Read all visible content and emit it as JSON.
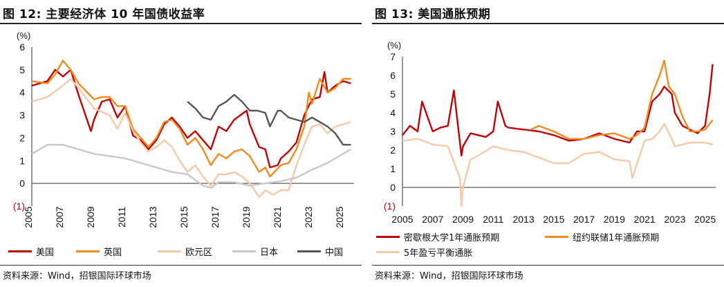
{
  "left": {
    "title": "图 12: 主要经济体 10 年国债收益率",
    "source": "资料来源：Wind，招银国际环球市场",
    "legend": [
      {
        "name": "美国",
        "color": "#c00000"
      },
      {
        "name": "英国",
        "color": "#f28a1e"
      },
      {
        "name": "欧元区",
        "color": "#f7c9a8"
      },
      {
        "name": "日本",
        "color": "#c8c8c8"
      },
      {
        "name": "中国",
        "color": "#555555"
      }
    ]
  },
  "right": {
    "title": "图 13: 美国通胀预期",
    "source": "资料来源：Wind，招银国际环球市场",
    "legend": [
      {
        "name": "密歇根大学1年通胀预期",
        "color": "#c00000"
      },
      {
        "name": "纽约联储1年通胀预期",
        "color": "#f28a1e"
      },
      {
        "name": "5年盈亏平衡通胀",
        "color": "#f7c9a8"
      }
    ]
  },
  "chart_data": [
    {
      "type": "line",
      "title": "图 12: 主要经济体 10 年国债收益率",
      "ylabel": "(%)",
      "ylim": [
        -1,
        6
      ],
      "yticks": [
        "6",
        "5",
        "4",
        "3",
        "2",
        "1",
        "0",
        "(1)"
      ],
      "xlim": [
        2005,
        2025.7
      ],
      "xticks": [
        "2005",
        "2007",
        "2009",
        "2011",
        "2013",
        "2015",
        "2017",
        "2019",
        "2021",
        "2023",
        "2025"
      ],
      "series": [
        {
          "name": "美国",
          "color": "#c00000",
          "x": [
            2005,
            2006,
            2006.5,
            2007,
            2007.5,
            2008,
            2008.8,
            2009,
            2009.5,
            2010,
            2010.5,
            2011,
            2011.5,
            2012,
            2012.5,
            2013,
            2013.5,
            2014,
            2014.5,
            2015,
            2015.5,
            2016,
            2016.5,
            2017,
            2017.5,
            2018,
            2018.8,
            2019,
            2019.6,
            2020,
            2020.3,
            2020.8,
            2021,
            2021.5,
            2022,
            2022.5,
            2023,
            2023.5,
            2023.8,
            2024,
            2024.5,
            2025,
            2025.5
          ],
          "y": [
            4.3,
            4.5,
            5.0,
            4.7,
            5.0,
            3.9,
            2.3,
            2.8,
            3.6,
            3.7,
            2.9,
            3.4,
            2.1,
            1.9,
            1.5,
            1.9,
            2.6,
            2.9,
            2.5,
            2.0,
            2.3,
            1.9,
            1.5,
            2.5,
            2.3,
            2.8,
            3.2,
            2.6,
            1.6,
            1.5,
            0.7,
            0.8,
            1.1,
            1.4,
            1.8,
            3.0,
            3.7,
            3.8,
            4.9,
            4.0,
            4.3,
            4.5,
            4.4
          ]
        },
        {
          "name": "英国",
          "color": "#f28a1e",
          "x": [
            2005,
            2006,
            2006.5,
            2007,
            2007.5,
            2008,
            2009,
            2009.5,
            2010,
            2010.5,
            2011,
            2011.5,
            2012,
            2012.5,
            2013,
            2013.5,
            2014,
            2014.5,
            2015,
            2015.5,
            2016,
            2016.5,
            2017,
            2017.5,
            2018,
            2018.5,
            2019,
            2019.6,
            2020,
            2020.3,
            2021,
            2021.5,
            2022,
            2022.5,
            2022.8,
            2023,
            2023.5,
            2024,
            2024.5,
            2025,
            2025.5
          ],
          "y": [
            4.5,
            4.4,
            4.8,
            5.4,
            5.0,
            4.4,
            3.7,
            3.8,
            3.8,
            3.4,
            3.4,
            2.4,
            2.0,
            1.6,
            2.0,
            2.7,
            2.8,
            2.4,
            1.7,
            2.0,
            1.5,
            0.8,
            1.3,
            1.1,
            1.4,
            1.5,
            1.2,
            0.5,
            0.7,
            0.3,
            0.8,
            0.9,
            1.5,
            2.5,
            4.0,
            3.5,
            4.6,
            4.0,
            4.2,
            4.6,
            4.6
          ]
        },
        {
          "name": "欧元区",
          "color": "#f7c9a8",
          "x": [
            2005,
            2006,
            2007,
            2007.5,
            2008,
            2009,
            2010,
            2010.5,
            2011,
            2011.5,
            2012,
            2012.5,
            2013,
            2013.5,
            2014,
            2014.5,
            2015,
            2015.5,
            2016,
            2016.5,
            2017,
            2017.5,
            2018,
            2018.5,
            2019,
            2019.6,
            2020,
            2020.5,
            2021,
            2021.5,
            2022,
            2022.5,
            2023,
            2023.5,
            2024,
            2024.5,
            2025,
            2025.5
          ],
          "y": [
            3.6,
            3.8,
            4.3,
            4.6,
            4.2,
            3.3,
            3.0,
            2.4,
            3.1,
            2.3,
            1.8,
            1.4,
            1.6,
            1.9,
            1.6,
            1.0,
            0.5,
            0.8,
            0.3,
            -0.1,
            0.4,
            0.4,
            0.5,
            0.3,
            0.0,
            -0.6,
            -0.3,
            -0.5,
            -0.3,
            -0.3,
            0.8,
            1.7,
            2.5,
            2.6,
            2.2,
            2.5,
            2.6,
            2.7
          ]
        },
        {
          "name": "日本",
          "color": "#c8c8c8",
          "x": [
            2005,
            2006,
            2007,
            2008,
            2009,
            2010,
            2011,
            2012,
            2013,
            2014,
            2015,
            2016,
            2016.5,
            2017,
            2018,
            2019,
            2020,
            2021,
            2022,
            2023,
            2024,
            2025,
            2025.5
          ],
          "y": [
            1.3,
            1.7,
            1.7,
            1.5,
            1.3,
            1.2,
            1.1,
            0.9,
            0.7,
            0.5,
            0.4,
            -0.1,
            -0.2,
            0.05,
            0.05,
            -0.1,
            0.0,
            0.1,
            0.25,
            0.6,
            0.9,
            1.3,
            1.5
          ]
        },
        {
          "name": "中国",
          "color": "#555555",
          "x": [
            2015,
            2015.5,
            2016,
            2016.5,
            2017,
            2017.5,
            2018,
            2018.5,
            2019,
            2019.5,
            2020,
            2020.3,
            2020.8,
            2021,
            2021.5,
            2022,
            2022.5,
            2023,
            2023.5,
            2024,
            2024.5,
            2025,
            2025.5
          ],
          "y": [
            3.6,
            3.3,
            2.9,
            2.8,
            3.4,
            3.6,
            3.9,
            3.6,
            3.2,
            3.2,
            3.1,
            2.5,
            3.2,
            3.2,
            2.9,
            2.8,
            2.7,
            2.9,
            2.7,
            2.5,
            2.2,
            1.7,
            1.7
          ]
        }
      ]
    },
    {
      "type": "line",
      "title": "图 13: 美国通胀预期",
      "ylabel": "(%)",
      "ylim": [
        -1,
        7
      ],
      "yticks": [
        "7",
        "6",
        "5",
        "4",
        "3",
        "2",
        "1",
        "0",
        "(1)"
      ],
      "xlim": [
        2005,
        2025.7
      ],
      "xticks": [
        "2005",
        "2007",
        "2009",
        "2011",
        "2013",
        "2015",
        "2017",
        "2019",
        "2021",
        "2023",
        "2025"
      ],
      "series": [
        {
          "name": "密歇根大学1年通胀预期",
          "color": "#c00000",
          "x": [
            2005,
            2005.5,
            2006,
            2006.3,
            2007,
            2007.5,
            2008,
            2008.4,
            2008.9,
            2009,
            2009.5,
            2010,
            2010.5,
            2011,
            2011.3,
            2011.8,
            2012,
            2013,
            2014,
            2015,
            2016,
            2017,
            2018,
            2019,
            2020,
            2020.5,
            2021,
            2021.5,
            2022,
            2022.3,
            2022.8,
            2023,
            2023.5,
            2024,
            2024.5,
            2025,
            2025.3,
            2025.5
          ],
          "y": [
            2.8,
            3.3,
            3.0,
            4.6,
            3.0,
            3.2,
            3.3,
            5.2,
            1.7,
            2.2,
            2.9,
            2.8,
            2.7,
            3.0,
            4.6,
            3.3,
            3.2,
            3.1,
            3.0,
            2.8,
            2.5,
            2.6,
            2.9,
            2.6,
            2.4,
            3.0,
            3.0,
            4.6,
            5.0,
            5.4,
            5.0,
            4.0,
            3.3,
            3.1,
            2.9,
            3.3,
            5.0,
            6.6
          ]
        },
        {
          "name": "纽约联储1年通胀预期",
          "color": "#f28a1e",
          "x": [
            2013.5,
            2014,
            2015,
            2016,
            2017,
            2018,
            2019,
            2020,
            2020.5,
            2021,
            2021.5,
            2022,
            2022.3,
            2022.6,
            2023,
            2023.5,
            2024,
            2024.5,
            2025,
            2025.5
          ],
          "y": [
            3.1,
            3.3,
            3.0,
            2.6,
            2.6,
            2.8,
            2.9,
            2.6,
            2.8,
            3.2,
            5.0,
            6.0,
            6.8,
            5.4,
            5.0,
            3.8,
            3.0,
            3.0,
            3.1,
            3.6
          ]
        },
        {
          "name": "5年盈亏平衡通胀",
          "color": "#f7c9a8",
          "x": [
            2005,
            2006,
            2007,
            2008,
            2008.8,
            2008.9,
            2009,
            2009.5,
            2010,
            2011,
            2012,
            2013,
            2014,
            2015,
            2016,
            2017,
            2018,
            2019,
            2020,
            2020.2,
            2021,
            2021.5,
            2022,
            2022.3,
            2022.8,
            2023,
            2024,
            2025,
            2025.5
          ],
          "y": [
            2.5,
            2.6,
            2.3,
            2.2,
            0.5,
            -1.0,
            0.0,
            1.5,
            1.7,
            2.2,
            2.0,
            1.9,
            1.6,
            1.3,
            1.3,
            1.8,
            1.9,
            1.5,
            1.4,
            0.5,
            2.5,
            2.6,
            3.0,
            3.4,
            2.6,
            2.2,
            2.4,
            2.4,
            2.3
          ]
        }
      ]
    }
  ]
}
